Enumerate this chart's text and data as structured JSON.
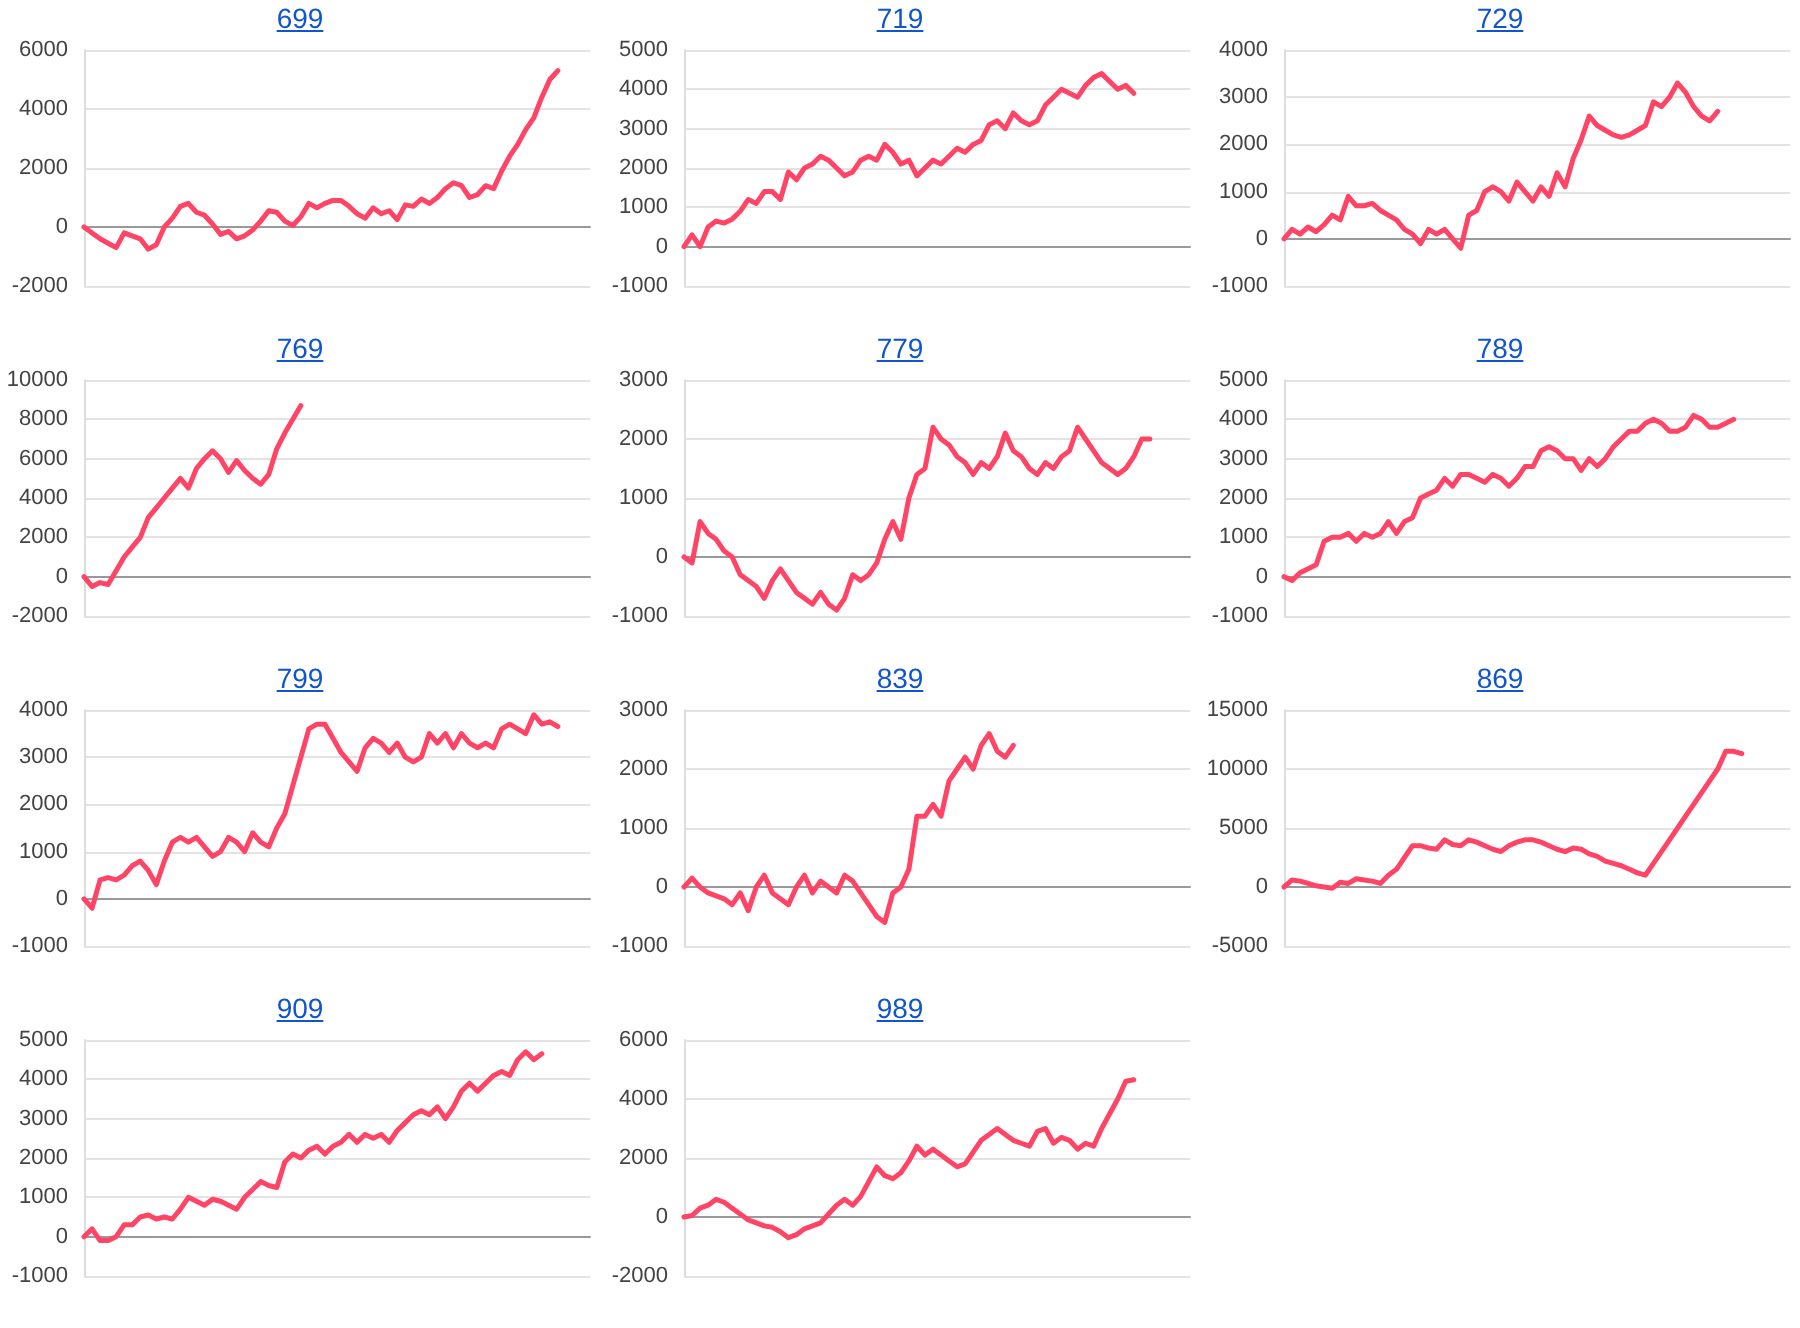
{
  "chart_data": [
    {
      "type": "line",
      "title": "699",
      "categories": [
        null,
        null,
        null,
        null,
        null,
        null,
        null,
        null,
        null,
        null,
        null,
        null,
        null,
        null,
        null,
        null,
        null,
        null,
        null,
        null,
        null,
        null,
        null,
        null,
        null,
        null,
        null,
        null,
        null,
        null,
        null,
        null,
        null,
        null,
        null,
        null,
        null,
        null,
        null,
        null,
        null,
        null,
        null,
        null,
        null,
        null,
        null,
        null,
        null,
        null,
        null,
        null,
        null,
        null,
        null,
        null,
        null,
        null,
        null,
        null,
        null,
        null,
        null,
        null
      ],
      "values": [
        0,
        -200,
        -400,
        -550,
        -700,
        -200,
        -300,
        -400,
        -750,
        -600,
        0,
        300,
        700,
        800,
        500,
        400,
        100,
        -250,
        -150,
        -400,
        -300,
        -100,
        200,
        550,
        500,
        200,
        50,
        350,
        800,
        650,
        800,
        900,
        900,
        700,
        450,
        300,
        650,
        450,
        550,
        250,
        750,
        700,
        950,
        800,
        1000,
        1300,
        1500,
        1400,
        1000,
        1100,
        1400,
        1300,
        1900,
        2400,
        2800,
        3300,
        3700,
        4400,
        5000,
        5300,
        null,
        null,
        null,
        null
      ],
      "color": "#ff4466",
      "ylim": [
        -2000,
        6000
      ],
      "yticks": [
        -2000,
        0,
        2000,
        4000,
        6000
      ],
      "grid": "y",
      "tick_labels": "y"
    },
    {
      "type": "line",
      "title": "719",
      "categories": [
        null,
        null,
        null,
        null,
        null,
        null,
        null,
        null,
        null,
        null,
        null,
        null,
        null,
        null,
        null,
        null,
        null,
        null,
        null,
        null,
        null,
        null,
        null,
        null,
        null,
        null,
        null,
        null,
        null,
        null,
        null,
        null,
        null,
        null,
        null,
        null,
        null,
        null,
        null,
        null,
        null,
        null,
        null,
        null,
        null,
        null,
        null,
        null,
        null,
        null,
        null,
        null,
        null,
        null,
        null,
        null,
        null,
        null,
        null,
        null,
        null,
        null,
        null,
        null
      ],
      "values": [
        0,
        300,
        0,
        500,
        650,
        600,
        700,
        900,
        1200,
        1100,
        1400,
        1400,
        1200,
        1900,
        1700,
        2000,
        2100,
        2300,
        2200,
        2000,
        1800,
        1900,
        2200,
        2300,
        2200,
        2600,
        2400,
        2100,
        2200,
        1800,
        2000,
        2200,
        2100,
        2300,
        2500,
        2400,
        2600,
        2700,
        3100,
        3200,
        3000,
        3400,
        3200,
        3100,
        3200,
        3600,
        3800,
        4000,
        3900,
        3800,
        4100,
        4300,
        4400,
        4200,
        4000,
        4100,
        3900,
        null,
        null,
        null,
        null,
        null,
        null,
        null
      ],
      "color": "#ff4466",
      "ylim": [
        -1000,
        5000
      ],
      "yticks": [
        -1000,
        0,
        1000,
        2000,
        3000,
        4000,
        5000
      ],
      "grid": "y",
      "tick_labels": "y"
    },
    {
      "type": "line",
      "title": "729",
      "categories": [
        null,
        null,
        null,
        null,
        null,
        null,
        null,
        null,
        null,
        null,
        null,
        null,
        null,
        null,
        null,
        null,
        null,
        null,
        null,
        null,
        null,
        null,
        null,
        null,
        null,
        null,
        null,
        null,
        null,
        null,
        null,
        null,
        null,
        null,
        null,
        null,
        null,
        null,
        null,
        null,
        null,
        null,
        null,
        null,
        null,
        null,
        null,
        null,
        null,
        null,
        null,
        null,
        null,
        null,
        null,
        null,
        null,
        null,
        null,
        null,
        null,
        null,
        null,
        null
      ],
      "values": [
        0,
        200,
        100,
        250,
        150,
        300,
        500,
        400,
        900,
        700,
        700,
        750,
        600,
        500,
        400,
        200,
        100,
        -100,
        200,
        100,
        200,
        0,
        -200,
        500,
        600,
        1000,
        1100,
        1000,
        800,
        1200,
        1000,
        800,
        1100,
        900,
        1400,
        1100,
        1700,
        2100,
        2600,
        2400,
        2300,
        2200,
        2150,
        2200,
        2300,
        2400,
        2900,
        2800,
        3000,
        3300,
        3100,
        2800,
        2600,
        2500,
        2700,
        null,
        null,
        null,
        null,
        null,
        null,
        null,
        null,
        null
      ],
      "color": "#ff4466",
      "ylim": [
        -1000,
        4000
      ],
      "yticks": [
        -1000,
        0,
        1000,
        2000,
        3000,
        4000
      ],
      "grid": "y",
      "tick_labels": "y"
    },
    {
      "type": "line",
      "title": "769",
      "categories": [
        null,
        null,
        null,
        null,
        null,
        null,
        null,
        null,
        null,
        null,
        null,
        null,
        null,
        null,
        null,
        null,
        null,
        null,
        null,
        null,
        null,
        null,
        null,
        null,
        null,
        null,
        null,
        null,
        null,
        null,
        null,
        null,
        null,
        null,
        null,
        null,
        null,
        null,
        null,
        null,
        null,
        null,
        null,
        null,
        null,
        null,
        null,
        null,
        null,
        null,
        null,
        null,
        null,
        null,
        null,
        null,
        null,
        null,
        null,
        null,
        null,
        null,
        null,
        null
      ],
      "values": [
        0,
        -500,
        -300,
        -400,
        300,
        1000,
        1500,
        2000,
        3000,
        3500,
        4000,
        4500,
        5000,
        4500,
        5500,
        6000,
        6400,
        6000,
        5300,
        5900,
        5400,
        5000,
        4700,
        5200,
        6500,
        7300,
        8000,
        8700,
        null,
        null,
        null,
        null,
        null,
        null,
        null,
        null,
        null,
        null,
        null,
        null,
        null,
        null,
        null,
        null,
        null,
        null,
        null,
        null,
        null,
        null,
        null,
        null,
        null,
        null,
        null,
        null,
        null,
        null,
        null,
        null,
        null,
        null,
        null,
        null
      ],
      "color": "#ff4466",
      "ylim": [
        -2000,
        10000
      ],
      "yticks": [
        -2000,
        0,
        2000,
        4000,
        6000,
        8000,
        10000
      ],
      "grid": "y",
      "tick_labels": "y"
    },
    {
      "type": "line",
      "title": "779",
      "categories": [
        null,
        null,
        null,
        null,
        null,
        null,
        null,
        null,
        null,
        null,
        null,
        null,
        null,
        null,
        null,
        null,
        null,
        null,
        null,
        null,
        null,
        null,
        null,
        null,
        null,
        null,
        null,
        null,
        null,
        null,
        null,
        null,
        null,
        null,
        null,
        null,
        null,
        null,
        null,
        null,
        null,
        null,
        null,
        null,
        null,
        null,
        null,
        null,
        null,
        null,
        null,
        null,
        null,
        null,
        null,
        null,
        null,
        null,
        null,
        null,
        null,
        null,
        null,
        null
      ],
      "values": [
        0,
        -100,
        600,
        400,
        300,
        100,
        0,
        -300,
        -400,
        -500,
        -700,
        -400,
        -200,
        -400,
        -600,
        -700,
        -800,
        -600,
        -800,
        -900,
        -700,
        -300,
        -400,
        -300,
        -100,
        300,
        600,
        300,
        1000,
        1400,
        1500,
        2200,
        2000,
        1900,
        1700,
        1600,
        1400,
        1600,
        1500,
        1700,
        2100,
        1800,
        1700,
        1500,
        1400,
        1600,
        1500,
        1700,
        1800,
        2200,
        2000,
        1800,
        1600,
        1500,
        1400,
        1500,
        1700,
        2000,
        2000,
        null,
        null,
        null,
        null,
        null
      ],
      "color": "#ff4466",
      "ylim": [
        -1000,
        3000
      ],
      "yticks": [
        -1000,
        0,
        1000,
        2000,
        3000
      ],
      "grid": "y",
      "tick_labels": "y"
    },
    {
      "type": "line",
      "title": "789",
      "categories": [
        null,
        null,
        null,
        null,
        null,
        null,
        null,
        null,
        null,
        null,
        null,
        null,
        null,
        null,
        null,
        null,
        null,
        null,
        null,
        null,
        null,
        null,
        null,
        null,
        null,
        null,
        null,
        null,
        null,
        null,
        null,
        null,
        null,
        null,
        null,
        null,
        null,
        null,
        null,
        null,
        null,
        null,
        null,
        null,
        null,
        null,
        null,
        null,
        null,
        null,
        null,
        null,
        null,
        null,
        null,
        null,
        null,
        null,
        null,
        null,
        null,
        null,
        null,
        null
      ],
      "values": [
        0,
        -100,
        100,
        200,
        300,
        900,
        1000,
        1000,
        1100,
        900,
        1100,
        1000,
        1100,
        1400,
        1100,
        1400,
        1500,
        2000,
        2100,
        2200,
        2500,
        2300,
        2600,
        2600,
        2500,
        2400,
        2600,
        2500,
        2300,
        2500,
        2800,
        2800,
        3200,
        3300,
        3200,
        3000,
        3000,
        2700,
        3000,
        2800,
        3000,
        3300,
        3500,
        3700,
        3700,
        3900,
        4000,
        3900,
        3700,
        3700,
        3800,
        4100,
        4000,
        3800,
        3800,
        3900,
        4000,
        null,
        null,
        null,
        null,
        null,
        null,
        null
      ],
      "color": "#ff4466",
      "ylim": [
        -1000,
        5000
      ],
      "yticks": [
        -1000,
        0,
        1000,
        2000,
        3000,
        4000,
        5000
      ],
      "grid": "y",
      "tick_labels": "y"
    },
    {
      "type": "line",
      "title": "799",
      "categories": [
        null,
        null,
        null,
        null,
        null,
        null,
        null,
        null,
        null,
        null,
        null,
        null,
        null,
        null,
        null,
        null,
        null,
        null,
        null,
        null,
        null,
        null,
        null,
        null,
        null,
        null,
        null,
        null,
        null,
        null,
        null,
        null,
        null,
        null,
        null,
        null,
        null,
        null,
        null,
        null,
        null,
        null,
        null,
        null,
        null,
        null,
        null,
        null,
        null,
        null,
        null,
        null,
        null,
        null,
        null,
        null,
        null,
        null,
        null,
        null,
        null,
        null,
        null,
        null
      ],
      "values": [
        0,
        -200,
        400,
        450,
        400,
        500,
        700,
        800,
        600,
        300,
        800,
        1200,
        1300,
        1200,
        1300,
        1100,
        900,
        1000,
        1300,
        1200,
        1000,
        1400,
        1200,
        1100,
        1500,
        1800,
        2400,
        3000,
        3600,
        3700,
        3700,
        3400,
        3100,
        2900,
        2700,
        3200,
        3400,
        3300,
        3100,
        3300,
        3000,
        2900,
        3000,
        3500,
        3300,
        3500,
        3200,
        3500,
        3300,
        3200,
        3300,
        3200,
        3600,
        3700,
        3600,
        3500,
        3900,
        3700,
        3750,
        3650,
        null,
        null,
        null,
        null
      ],
      "color": "#ff4466",
      "ylim": [
        -1000,
        4000
      ],
      "yticks": [
        -1000,
        0,
        1000,
        2000,
        3000,
        4000
      ],
      "grid": "y",
      "tick_labels": "y"
    },
    {
      "type": "line",
      "title": "839",
      "categories": [
        null,
        null,
        null,
        null,
        null,
        null,
        null,
        null,
        null,
        null,
        null,
        null,
        null,
        null,
        null,
        null,
        null,
        null,
        null,
        null,
        null,
        null,
        null,
        null,
        null,
        null,
        null,
        null,
        null,
        null,
        null,
        null,
        null,
        null,
        null,
        null,
        null,
        null,
        null,
        null,
        null,
        null,
        null,
        null,
        null,
        null,
        null,
        null,
        null,
        null,
        null,
        null,
        null,
        null,
        null,
        null,
        null,
        null,
        null,
        null,
        null,
        null,
        null,
        null
      ],
      "values": [
        0,
        150,
        0,
        -100,
        -150,
        -200,
        -300,
        -100,
        -400,
        0,
        200,
        -100,
        -200,
        -300,
        0,
        200,
        -100,
        100,
        0,
        -100,
        200,
        100,
        -100,
        -300,
        -500,
        -600,
        -100,
        0,
        300,
        1200,
        1200,
        1400,
        1200,
        1800,
        2000,
        2200,
        2000,
        2400,
        2600,
        2300,
        2200,
        2400,
        null,
        null,
        null,
        null,
        null,
        null,
        null,
        null,
        null,
        null,
        null,
        null,
        null,
        null,
        null,
        null,
        null,
        null,
        null,
        null,
        null,
        null
      ],
      "color": "#ff4466",
      "ylim": [
        -1000,
        3000
      ],
      "yticks": [
        -1000,
        0,
        1000,
        2000,
        3000
      ],
      "grid": "y",
      "tick_labels": "y"
    },
    {
      "type": "line",
      "title": "869",
      "categories": [
        null,
        null,
        null,
        null,
        null,
        null,
        null,
        null,
        null,
        null,
        null,
        null,
        null,
        null,
        null,
        null,
        null,
        null,
        null,
        null,
        null,
        null,
        null,
        null,
        null,
        null,
        null,
        null,
        null,
        null,
        null,
        null,
        null,
        null,
        null,
        null,
        null,
        null,
        null,
        null,
        null,
        null,
        null,
        null,
        null,
        null,
        null,
        null,
        null,
        null,
        null,
        null,
        null,
        null,
        null,
        null,
        null,
        null,
        null,
        null,
        null,
        null,
        null,
        null
      ],
      "values": [
        0,
        600,
        500,
        300,
        100,
        0,
        -100,
        400,
        300,
        700,
        600,
        500,
        300,
        1000,
        1500,
        2500,
        3500,
        3500,
        3300,
        3200,
        4000,
        3600,
        3500,
        4000,
        3800,
        3500,
        3200,
        3000,
        3500,
        3800,
        4000,
        4000,
        3800,
        3500,
        3200,
        3000,
        3300,
        3200,
        2800,
        2600,
        2200,
        2000,
        1800,
        1500,
        1200,
        1000,
        2000,
        3000,
        4000,
        5000,
        6000,
        7000,
        8000,
        9000,
        10000,
        11500,
        11500,
        11300,
        null,
        null,
        null,
        null,
        null,
        null
      ],
      "color": "#ff4466",
      "ylim": [
        -5000,
        15000
      ],
      "yticks": [
        -5000,
        0,
        5000,
        10000,
        15000
      ],
      "grid": "y",
      "tick_labels": "y"
    },
    {
      "type": "line",
      "title": "909",
      "categories": [
        null,
        null,
        null,
        null,
        null,
        null,
        null,
        null,
        null,
        null,
        null,
        null,
        null,
        null,
        null,
        null,
        null,
        null,
        null,
        null,
        null,
        null,
        null,
        null,
        null,
        null,
        null,
        null,
        null,
        null,
        null,
        null,
        null,
        null,
        null,
        null,
        null,
        null,
        null,
        null,
        null,
        null,
        null,
        null,
        null,
        null,
        null,
        null,
        null,
        null,
        null,
        null,
        null,
        null,
        null,
        null,
        null,
        null,
        null,
        null,
        null,
        null,
        null,
        null
      ],
      "values": [
        0,
        200,
        -100,
        -100,
        0,
        300,
        300,
        500,
        550,
        450,
        500,
        450,
        700,
        1000,
        900,
        800,
        950,
        900,
        800,
        700,
        1000,
        1200,
        1400,
        1300,
        1250,
        1900,
        2100,
        2000,
        2200,
        2300,
        2100,
        2300,
        2400,
        2600,
        2400,
        2600,
        2500,
        2600,
        2400,
        2700,
        2900,
        3100,
        3200,
        3100,
        3300,
        3000,
        3300,
        3700,
        3900,
        3700,
        3900,
        4100,
        4200,
        4100,
        4500,
        4700,
        4500,
        4650,
        null,
        null,
        null,
        null,
        null,
        null
      ],
      "color": "#ff4466",
      "ylim": [
        -1000,
        5000
      ],
      "yticks": [
        -1000,
        0,
        1000,
        2000,
        3000,
        4000,
        5000
      ],
      "grid": "y",
      "tick_labels": "y"
    },
    {
      "type": "line",
      "title": "989",
      "categories": [
        null,
        null,
        null,
        null,
        null,
        null,
        null,
        null,
        null,
        null,
        null,
        null,
        null,
        null,
        null,
        null,
        null,
        null,
        null,
        null,
        null,
        null,
        null,
        null,
        null,
        null,
        null,
        null,
        null,
        null,
        null,
        null,
        null,
        null,
        null,
        null,
        null,
        null,
        null,
        null,
        null,
        null,
        null,
        null,
        null,
        null,
        null,
        null,
        null,
        null,
        null,
        null,
        null,
        null,
        null,
        null,
        null,
        null,
        null,
        null,
        null,
        null,
        null,
        null
      ],
      "values": [
        0,
        50,
        300,
        400,
        600,
        500,
        300,
        100,
        -100,
        -200,
        -300,
        -350,
        -500,
        -700,
        -600,
        -400,
        -300,
        -200,
        100,
        400,
        600,
        400,
        700,
        1200,
        1700,
        1400,
        1300,
        1500,
        1900,
        2400,
        2100,
        2300,
        2100,
        1900,
        1700,
        1800,
        2200,
        2600,
        2800,
        3000,
        2800,
        2600,
        2500,
        2400,
        2900,
        3000,
        2500,
        2700,
        2600,
        2300,
        2500,
        2400,
        3000,
        3500,
        4000,
        4600,
        4650,
        null,
        null,
        null,
        null,
        null,
        null,
        null
      ],
      "color": "#ff4466",
      "ylim": [
        -2000,
        6000
      ],
      "yticks": [
        -2000,
        0,
        2000,
        4000,
        6000
      ],
      "grid": "y",
      "tick_labels": "y"
    }
  ]
}
